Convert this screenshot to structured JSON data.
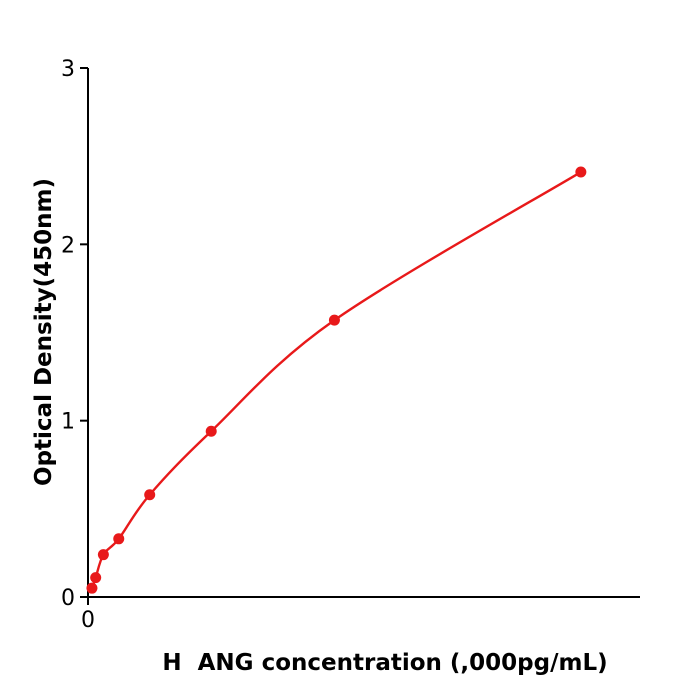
{
  "figure": {
    "background": "#ffffff"
  },
  "chart_data": {
    "type": "scatter",
    "curve": "smooth-line-through-points",
    "title": "",
    "xlabel": "H  ANG concentration (,000pg/mL)",
    "ylabel": "Optical Density(450nm)",
    "x": [
      0.2,
      0.39,
      0.78,
      1.56,
      3.13,
      6.25,
      12.5,
      25
    ],
    "y": [
      0.05,
      0.11,
      0.24,
      0.33,
      0.58,
      0.94,
      1.57,
      2.41
    ],
    "xlim": [
      0,
      28
    ],
    "ylim": [
      0,
      3
    ],
    "xticks": [
      0
    ],
    "yticks": [
      0,
      1,
      2,
      3
    ],
    "grid": false,
    "legend": "none",
    "point_color": "#e8191a",
    "line_color": "#e8191a",
    "axis_color": "#000000"
  }
}
